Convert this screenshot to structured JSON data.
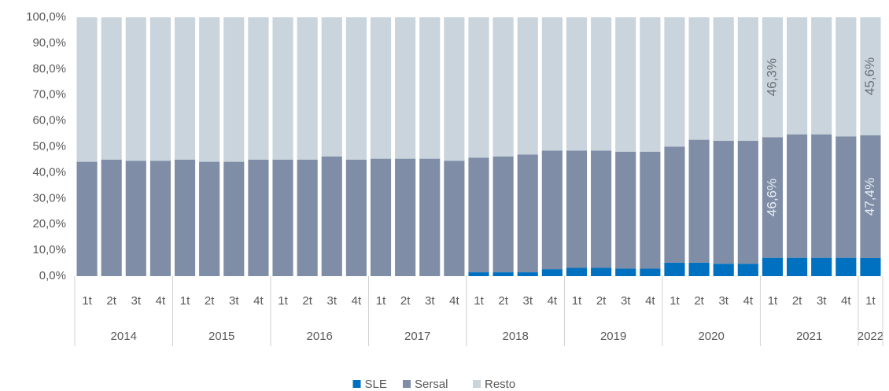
{
  "chart_data": {
    "type": "stacked_bar",
    "categories": [
      "1t",
      "2t",
      "3t",
      "4t",
      "1t",
      "2t",
      "3t",
      "4t",
      "1t",
      "2t",
      "3t",
      "4t",
      "1t",
      "2t",
      "3t",
      "4t",
      "1t",
      "2t",
      "3t",
      "4t",
      "1t",
      "2t",
      "3t",
      "4t",
      "1t",
      "2t",
      "3t",
      "4t",
      "1t",
      "2t",
      "3t",
      "4t",
      "1t"
    ],
    "groups": [
      {
        "name": "2014",
        "size": 4
      },
      {
        "name": "2015",
        "size": 4
      },
      {
        "name": "2016",
        "size": 4
      },
      {
        "name": "2017",
        "size": 4
      },
      {
        "name": "2018",
        "size": 4
      },
      {
        "name": "2019",
        "size": 4
      },
      {
        "name": "2020",
        "size": 4
      },
      {
        "name": "2021",
        "size": 4
      },
      {
        "name": "2022",
        "size": 1
      }
    ],
    "series": [
      {
        "name": "SLE",
        "color": "#0070c0",
        "values": [
          0,
          0,
          0,
          0,
          0,
          0,
          0,
          0,
          0,
          0,
          0,
          0,
          0,
          0,
          0,
          0,
          1.5,
          1.5,
          1.5,
          2.7,
          3.2,
          3.2,
          2.9,
          2.9,
          5.2,
          5.2,
          4.8,
          4.8,
          7.1,
          7.1,
          7.1,
          7.1,
          7.0
        ]
      },
      {
        "name": "Sersal",
        "color": "#7f8ea6",
        "values": [
          44.2,
          45,
          44.6,
          44.6,
          45,
          44.2,
          44.2,
          45,
          45,
          45,
          46.2,
          45,
          45.4,
          45.4,
          45.4,
          44.6,
          44.3,
          44.7,
          45.5,
          45.8,
          45.3,
          45.3,
          45.2,
          45.2,
          44.8,
          47.5,
          47.5,
          47.5,
          46.6,
          47.7,
          47.7,
          46.9,
          47.4
        ],
        "value_labels": [
          null,
          null,
          null,
          null,
          null,
          null,
          null,
          null,
          null,
          null,
          null,
          null,
          null,
          null,
          null,
          null,
          null,
          null,
          null,
          null,
          null,
          null,
          null,
          null,
          null,
          null,
          null,
          null,
          "46,6%",
          null,
          null,
          null,
          "47,4%"
        ]
      },
      {
        "name": "Resto",
        "color": "#c9d4dd",
        "values": [
          55.8,
          55,
          55.4,
          55.4,
          55,
          55.8,
          55.8,
          55,
          55,
          55,
          53.8,
          55,
          54.6,
          54.6,
          54.6,
          55.4,
          54.2,
          53.8,
          53,
          51.5,
          51.5,
          51.5,
          51.9,
          51.9,
          50,
          47.3,
          47.7,
          47.7,
          46.3,
          45.2,
          45.2,
          46,
          45.6
        ],
        "value_labels": [
          null,
          null,
          null,
          null,
          null,
          null,
          null,
          null,
          null,
          null,
          null,
          null,
          null,
          null,
          null,
          null,
          null,
          null,
          null,
          null,
          null,
          null,
          null,
          null,
          null,
          null,
          null,
          null,
          "46,3%",
          null,
          null,
          null,
          "45,6%"
        ]
      }
    ],
    "ylim": [
      0,
      100
    ],
    "yticks": [
      {
        "value": 0,
        "label": "0,0%"
      },
      {
        "value": 10,
        "label": "10,0%"
      },
      {
        "value": 20,
        "label": "20,0%"
      },
      {
        "value": 30,
        "label": "30,0%"
      },
      {
        "value": 40,
        "label": "40,0%"
      },
      {
        "value": 50,
        "label": "50,0%"
      },
      {
        "value": 60,
        "label": "60,0%"
      },
      {
        "value": 70,
        "label": "70,0%"
      },
      {
        "value": 80,
        "label": "80,0%"
      },
      {
        "value": 90,
        "label": "90,0%"
      },
      {
        "value": 100,
        "label": "100,0%"
      }
    ],
    "legend": "bottom"
  }
}
